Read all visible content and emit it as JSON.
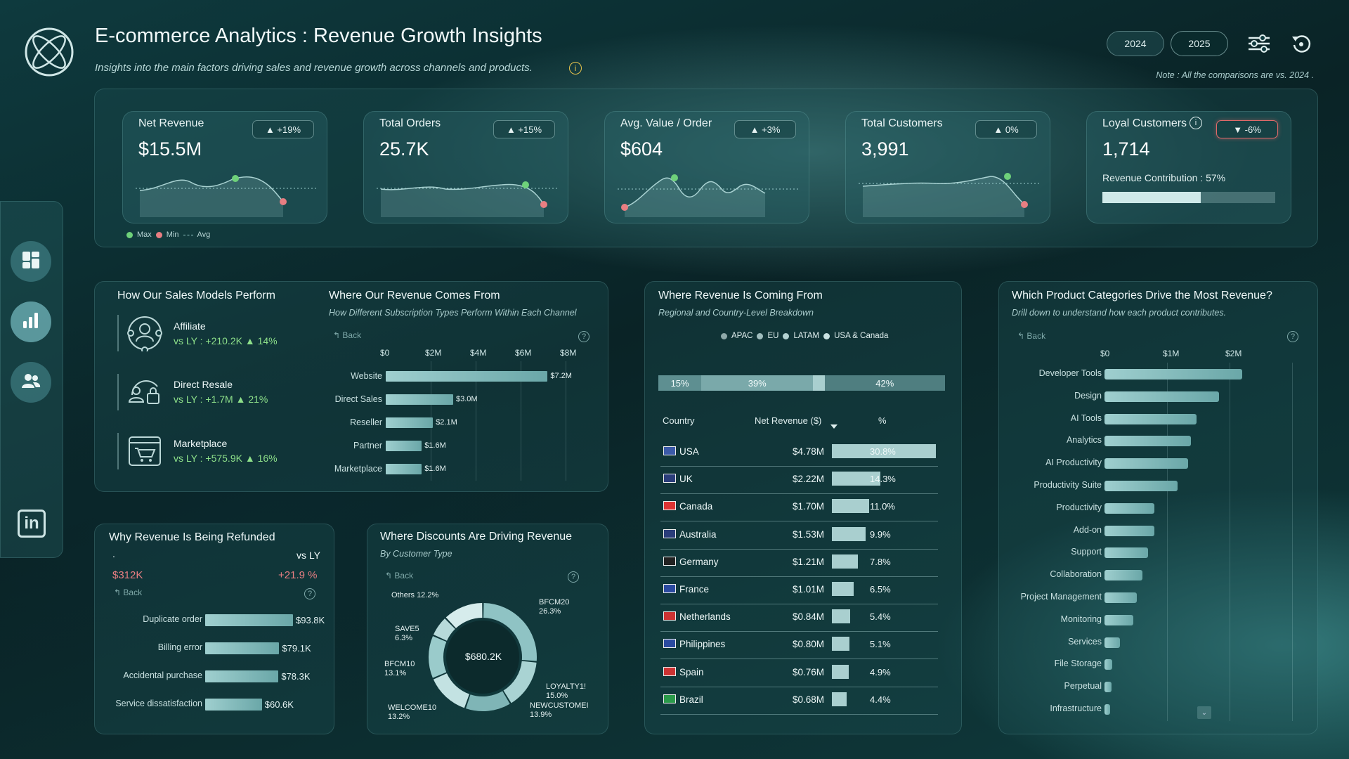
{
  "header": {
    "title": "E-commerce Analytics : Revenue Growth Insights",
    "subtitle": "Insights into the main factors driving sales and revenue growth across channels and products.",
    "note": "Note : All the comparisons are vs. 2024 .",
    "years": [
      "2024",
      "2025"
    ],
    "selected_year": "2025"
  },
  "kpis": [
    {
      "label": "Net Revenue",
      "value": "$15.5M",
      "change": "▲ +19%"
    },
    {
      "label": "Total Orders",
      "value": "25.7K",
      "change": "▲ +15%"
    },
    {
      "label": "Avg. Value / Order",
      "value": "$604",
      "change": "▲ +3%"
    },
    {
      "label": "Total Customers",
      "value": "3,991",
      "change": "▲ 0%"
    },
    {
      "label": "Loyal Customers",
      "value": "1,714",
      "change": "▼ -6%",
      "contribution_label": "Revenue Contribution : 57%",
      "contribution": 0.57
    }
  ],
  "sparkline_legend": {
    "max": "Max",
    "min": "Min",
    "avg": "Avg"
  },
  "sales_models": {
    "title": "How Our Sales Models Perform",
    "items": [
      {
        "name": "Affiliate",
        "delta": "vs LY : +210.2K ▲ 14%"
      },
      {
        "name": "Direct Resale",
        "delta": "vs LY : +1.7M ▲ 21%"
      },
      {
        "name": "Marketplace",
        "delta": "vs LY : +575.9K ▲ 16%"
      }
    ]
  },
  "revenue_source": {
    "title": "Where Our Revenue Comes From",
    "subtitle": "How Different Subscription Types Perform Within Each Channel",
    "back": "Back",
    "help": "?",
    "ticks": [
      "$0",
      "$2M",
      "$4M",
      "$6M",
      "$8M"
    ],
    "chart_data": {
      "type": "bar",
      "categories": [
        "Website",
        "Direct Sales",
        "Reseller",
        "Partner",
        "Marketplace"
      ],
      "values": [
        7.2,
        3.0,
        2.1,
        1.6,
        1.6
      ],
      "labels": [
        "$7.2M",
        "$3.0M",
        "$2.1M",
        "$1.6M",
        "$1.6M"
      ],
      "xlim": [
        0,
        8
      ]
    }
  },
  "refunds": {
    "title": "Why Revenue Is Being Refunded",
    "dot": ".",
    "vs": "vs LY",
    "total": "$312K",
    "change": "+21.9 %",
    "back": "Back",
    "help": "?",
    "chart_data": {
      "type": "bar",
      "categories": [
        "Duplicate order",
        "Billing error",
        "Accidental purchase",
        "Service dissatisfaction"
      ],
      "values": [
        93.8,
        79.1,
        78.3,
        60.6
      ],
      "labels": [
        "$93.8K",
        "$79.1K",
        "$78.3K",
        "$60.6K"
      ]
    }
  },
  "discounts": {
    "title": "Where Discounts Are Driving Revenue",
    "subtitle": "By Customer Type",
    "back": "Back",
    "help": "?",
    "center": "$680.2K",
    "chart_data": {
      "type": "pie",
      "slices": [
        {
          "name": "BFCM20",
          "pct": 26.3,
          "label": "26.3%"
        },
        {
          "name": "LOYALTY15",
          "display": "LOYALTY1!",
          "pct": 15.0,
          "label": "15.0%"
        },
        {
          "name": "NEWCUSTOMER",
          "display": "NEWCUSTOMEI",
          "pct": 13.9,
          "label": "13.9%"
        },
        {
          "name": "WELCOME10",
          "pct": 13.2,
          "label": "13.2%"
        },
        {
          "name": "BFCM10",
          "pct": 13.1,
          "label": "13.1%"
        },
        {
          "name": "SAVE5",
          "pct": 6.3,
          "label": "6.3%"
        },
        {
          "name": "Others",
          "pct": 12.2,
          "label": "12.2%"
        }
      ]
    }
  },
  "regions": {
    "title": "Where Revenue Is Coming From",
    "subtitle": "Regional and Country-Level Breakdown",
    "legend": [
      "APAC",
      "EU",
      "LATAM",
      "USA & Canada"
    ],
    "split": [
      {
        "label": "15%",
        "pct": 15
      },
      {
        "label": "39%",
        "pct": 39
      },
      {
        "label": "",
        "pct": 4
      },
      {
        "label": "42%",
        "pct": 42
      }
    ],
    "columns": [
      "Country",
      "Net Revenue ($)",
      "%"
    ],
    "chart_data": {
      "type": "table",
      "rows": [
        {
          "country": "USA",
          "revenue": "$4.78M",
          "pct": "30.8%",
          "value": 30.8
        },
        {
          "country": "UK",
          "revenue": "$2.22M",
          "pct": "14.3%",
          "value": 14.3
        },
        {
          "country": "Canada",
          "revenue": "$1.70M",
          "pct": "11.0%",
          "value": 11.0
        },
        {
          "country": "Australia",
          "revenue": "$1.53M",
          "pct": "9.9%",
          "value": 9.9
        },
        {
          "country": "Germany",
          "revenue": "$1.21M",
          "pct": "7.8%",
          "value": 7.8
        },
        {
          "country": "France",
          "revenue": "$1.01M",
          "pct": "6.5%",
          "value": 6.5
        },
        {
          "country": "Netherlands",
          "revenue": "$0.84M",
          "pct": "5.4%",
          "value": 5.4
        },
        {
          "country": "Philippines",
          "revenue": "$0.80M",
          "pct": "5.1%",
          "value": 5.1
        },
        {
          "country": "Spain",
          "revenue": "$0.76M",
          "pct": "4.9%",
          "value": 4.9
        },
        {
          "country": "Brazil",
          "revenue": "$0.68M",
          "pct": "4.4%",
          "value": 4.4
        }
      ]
    }
  },
  "categories": {
    "title": "Which Product Categories Drive the Most Revenue?",
    "subtitle": "Drill down to understand how each product contributes.",
    "back": "Back",
    "help": "?",
    "ticks": [
      "$0",
      "$1M",
      "$2M"
    ],
    "chart_data": {
      "type": "bar",
      "categories": [
        "Developer Tools",
        "Design",
        "AI Tools",
        "Analytics",
        "AI Productivity",
        "Productivity Suite",
        "Productivity",
        "Add-on",
        "Support",
        "Collaboration",
        "Project Management",
        "Monitoring",
        "Services",
        "File Storage",
        "Perpetual",
        "Infrastructure"
      ],
      "values": [
        2.45,
        2.03,
        1.64,
        1.53,
        1.48,
        1.3,
        0.89,
        0.89,
        0.78,
        0.67,
        0.57,
        0.51,
        0.28,
        0.14,
        0.12,
        0.1
      ],
      "xlim": [
        0,
        2.8
      ]
    }
  }
}
